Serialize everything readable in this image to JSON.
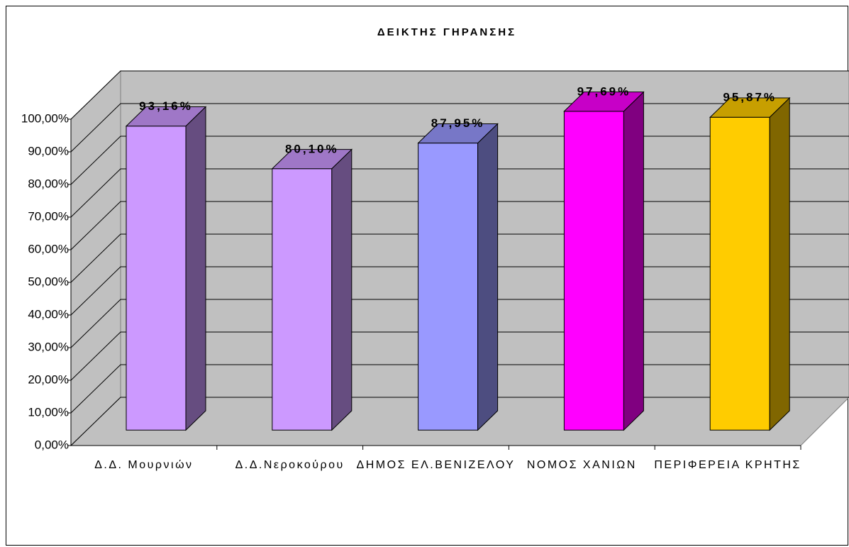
{
  "chart_data": {
    "type": "bar3d",
    "title": "ΔΕΙΚΤΗΣ ΓΗΡΑΝΣΗΣ",
    "categories": [
      "Δ.Δ. Μουρνιών",
      "Δ.Δ.Νεροκούρου",
      "ΔΗΜΟΣ ΕΛ.ΒΕΝΙΖΕΛΟΥ",
      "ΝΟΜΟΣ ΧΑΝΙΩΝ",
      "ΠΕΡΙΦΕΡΕΙΑ ΚΡΗΤΗΣ"
    ],
    "values": [
      93.16,
      80.1,
      87.95,
      97.69,
      95.87
    ],
    "value_labels": [
      "93,16%",
      "80,10%",
      "87,95%",
      "97,69%",
      "95,87%"
    ],
    "colors": [
      "#cc99ff",
      "#cc99ff",
      "#9999ff",
      "#ff00ff",
      "#ffcc00"
    ],
    "ylim": [
      0,
      100
    ],
    "yticks": [
      {
        "value": 0,
        "label": "0,00%"
      },
      {
        "value": 10,
        "label": "10,00%"
      },
      {
        "value": 20,
        "label": "20,00%"
      },
      {
        "value": 30,
        "label": "30,00%"
      },
      {
        "value": 40,
        "label": "40,00%"
      },
      {
        "value": 50,
        "label": "50,00%"
      },
      {
        "value": 60,
        "label": "60,00%"
      },
      {
        "value": 70,
        "label": "70,00%"
      },
      {
        "value": 80,
        "label": "80,00%"
      },
      {
        "value": 90,
        "label": "90,00%"
      },
      {
        "value": 100,
        "label": "100,00%"
      }
    ],
    "grid": true
  }
}
